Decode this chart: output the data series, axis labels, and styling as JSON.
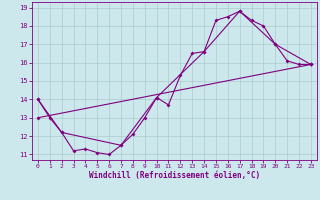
{
  "xlabel": "Windchill (Refroidissement éolien,°C)",
  "xlim": [
    -0.5,
    23.5
  ],
  "ylim": [
    10.7,
    19.3
  ],
  "yticks": [
    11,
    12,
    13,
    14,
    15,
    16,
    17,
    18,
    19
  ],
  "xticks": [
    0,
    1,
    2,
    3,
    4,
    5,
    6,
    7,
    8,
    9,
    10,
    11,
    12,
    13,
    14,
    15,
    16,
    17,
    18,
    19,
    20,
    21,
    22,
    23
  ],
  "background_color": "#cce8ec",
  "grid_color": "#aacccc",
  "line_color": "#800080",
  "series1_x": [
    0,
    1,
    2,
    3,
    4,
    5,
    6,
    7,
    8,
    9,
    10,
    11,
    12,
    13,
    14,
    15,
    16,
    17,
    18,
    19,
    20,
    21,
    22,
    23
  ],
  "series1_y": [
    14.0,
    13.0,
    12.2,
    11.2,
    11.3,
    11.1,
    11.0,
    11.5,
    12.1,
    13.0,
    14.1,
    13.7,
    15.3,
    16.5,
    16.6,
    18.3,
    18.5,
    18.8,
    18.3,
    18.0,
    17.0,
    16.1,
    15.9,
    15.9
  ],
  "series2_x": [
    0,
    2,
    7,
    10,
    14,
    17,
    20,
    23
  ],
  "series2_y": [
    14.0,
    12.2,
    11.5,
    14.1,
    16.6,
    18.8,
    17.0,
    15.9
  ],
  "series3_x": [
    0,
    23
  ],
  "series3_y": [
    13.0,
    15.9
  ]
}
